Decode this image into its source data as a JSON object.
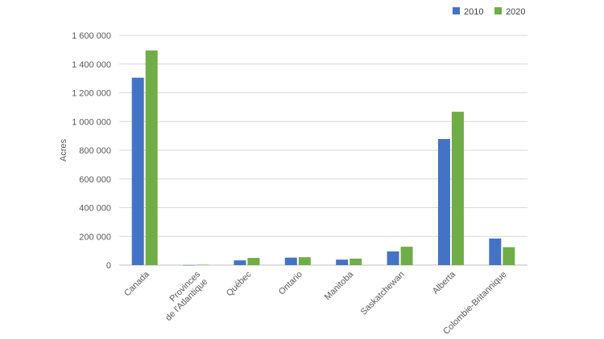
{
  "chart_data": {
    "type": "bar",
    "categories": [
      "Canada",
      "Provinces de l'Atlantique",
      "Québec",
      "Ontario",
      "Manitoba",
      "Saskatchewan",
      "Alberta",
      "Colombie-Britannique"
    ],
    "category_lines": [
      [
        "Canada"
      ],
      [
        "Provinces",
        "de l'Atlantique"
      ],
      [
        "Québec"
      ],
      [
        "Ontario"
      ],
      [
        "Manitoba"
      ],
      [
        "Saskatchewan"
      ],
      [
        "Alberta"
      ],
      [
        "Colombie-Britannique"
      ]
    ],
    "series": [
      {
        "name": "2010",
        "color": "#4472C4",
        "values": [
          1305000,
          600,
          33000,
          52000,
          38000,
          95000,
          878000,
          185000
        ]
      },
      {
        "name": "2020",
        "color": "#70AD47",
        "values": [
          1495000,
          3000,
          50000,
          55000,
          45000,
          128000,
          1068000,
          125000
        ]
      }
    ],
    "ylabel": "Acres",
    "ylim": [
      0,
      1600000
    ],
    "yticks": [
      0,
      200000,
      400000,
      600000,
      800000,
      1000000,
      1200000,
      1400000,
      1600000
    ],
    "ytick_labels": [
      "0",
      "200 000",
      "400 000",
      "600 000",
      "800 000",
      "1 000 000",
      "1 200 000",
      "1 400 000",
      "1 600 000"
    ],
    "grid": true,
    "legend_position": "top-right"
  }
}
